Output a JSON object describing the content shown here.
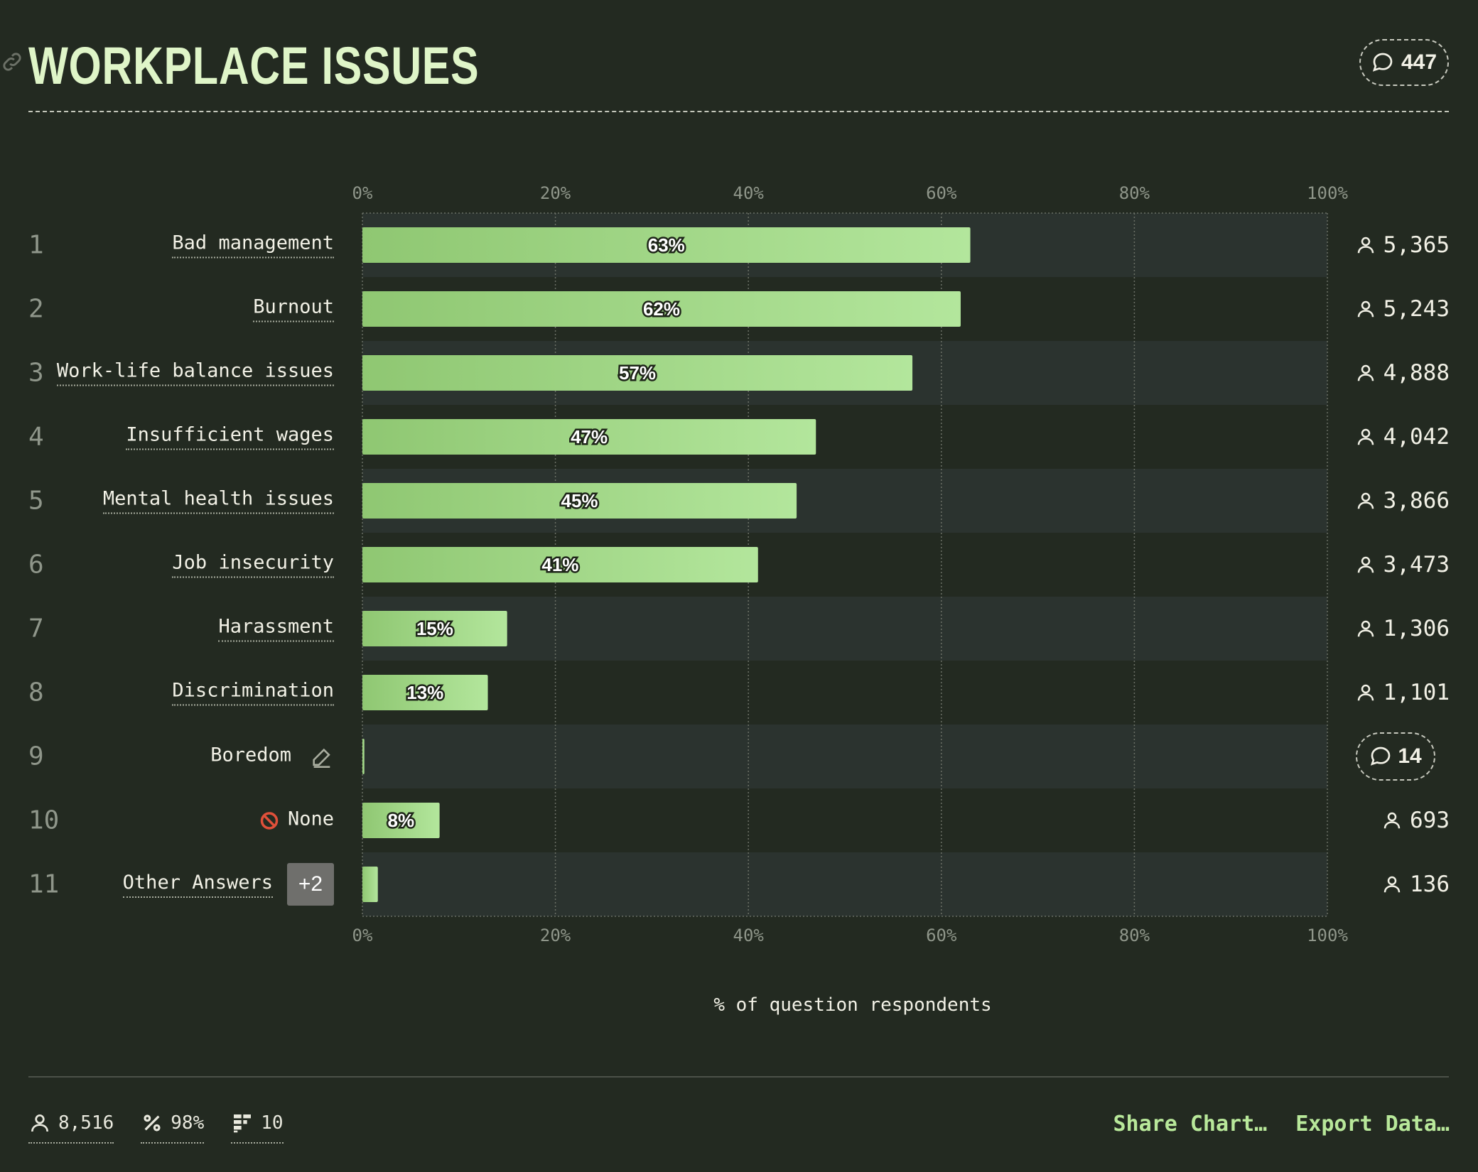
{
  "header": {
    "title": "WORKPLACE ISSUES",
    "comment_count": "447"
  },
  "chart_data": {
    "type": "bar",
    "orientation": "horizontal",
    "xlabel": "% of question respondents",
    "xlim": [
      0,
      100
    ],
    "x_ticks": [
      "0%",
      "20%",
      "40%",
      "60%",
      "80%",
      "100%"
    ],
    "grid": true,
    "rows": [
      {
        "rank": "1",
        "label": "Bad management",
        "value": 63,
        "value_label": "63%",
        "count": "5,365"
      },
      {
        "rank": "2",
        "label": "Burnout",
        "value": 62,
        "value_label": "62%",
        "count": "5,243"
      },
      {
        "rank": "3",
        "label": "Work-life balance issues",
        "value": 57,
        "value_label": "57%",
        "count": "4,888"
      },
      {
        "rank": "4",
        "label": "Insufficient wages",
        "value": 47,
        "value_label": "47%",
        "count": "4,042"
      },
      {
        "rank": "5",
        "label": "Mental health issues",
        "value": 45,
        "value_label": "45%",
        "count": "3,866"
      },
      {
        "rank": "6",
        "label": "Job insecurity",
        "value": 41,
        "value_label": "41%",
        "count": "3,473"
      },
      {
        "rank": "7",
        "label": "Harassment",
        "value": 15,
        "value_label": "15%",
        "count": "1,306"
      },
      {
        "rank": "8",
        "label": "Discrimination",
        "value": 13,
        "value_label": "13%",
        "count": "1,101"
      },
      {
        "rank": "9",
        "label": "Boredom",
        "value": 0.2,
        "value_label": "",
        "comment_count": "14"
      },
      {
        "rank": "10",
        "label": "None",
        "value": 8,
        "value_label": "8%",
        "count": "693"
      },
      {
        "rank": "11",
        "label": "Other Answers",
        "badge": "+2",
        "value": 1.6,
        "value_label": "",
        "count": "136"
      }
    ],
    "colors": {
      "bar_start": "#8fc772",
      "bar_end": "#b3e69c",
      "band": "#2b332f",
      "grid": "#6b7066",
      "tick": "#8f968a"
    }
  },
  "footer": {
    "respondents": "8,516",
    "percent": "98%",
    "options": "10",
    "share_label": "Share Chart…",
    "export_label": "Export Data…"
  }
}
